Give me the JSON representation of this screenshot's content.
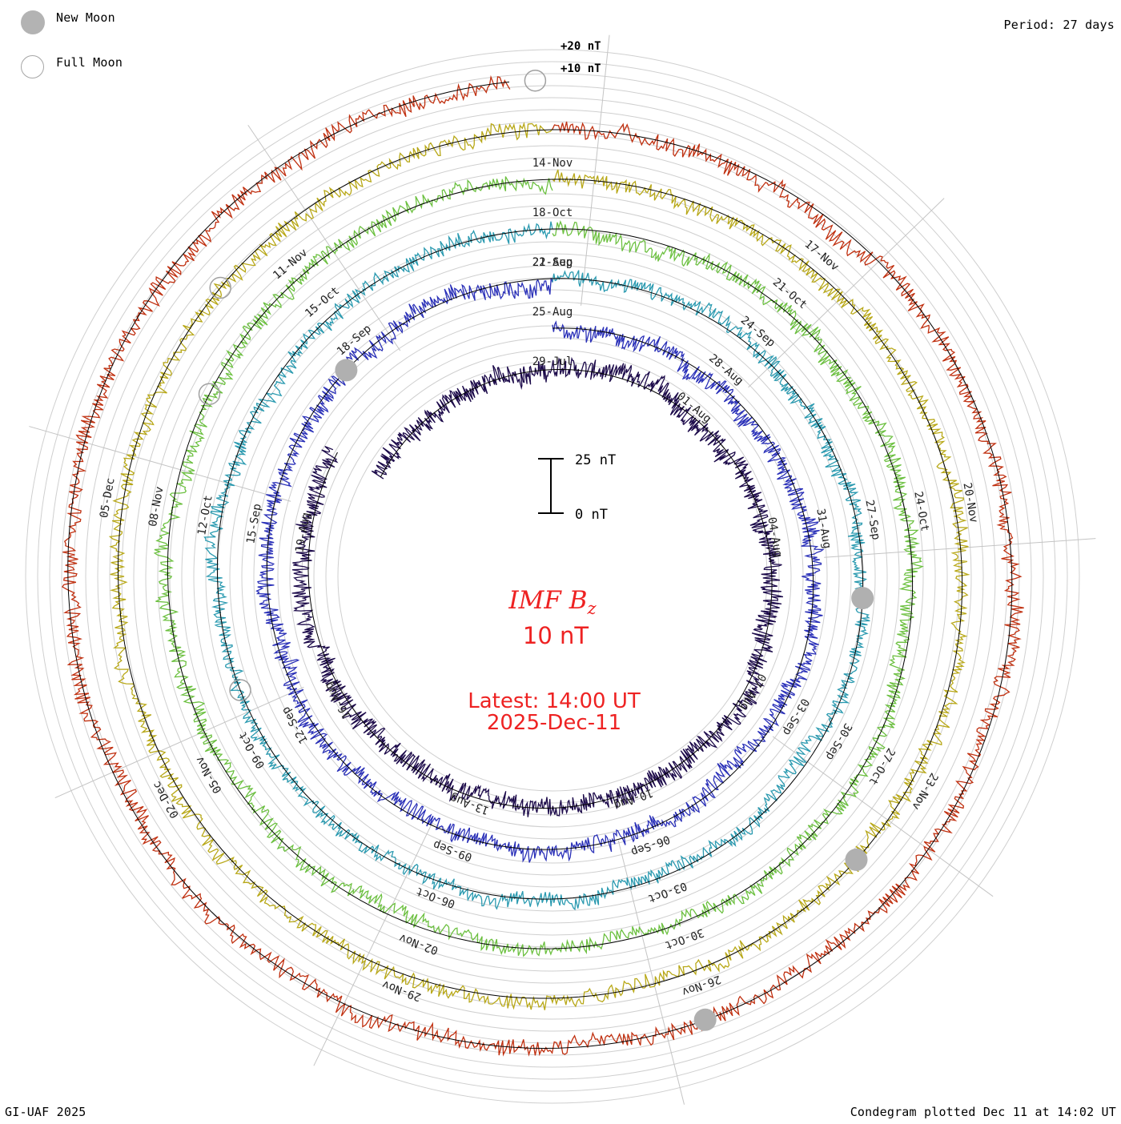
{
  "legend": {
    "new_moon": "New Moon",
    "full_moon": "Full Moon"
  },
  "period": "Period: 27 days",
  "footer": {
    "credit": "GI-UAF 2025",
    "plotted": "Condegram plotted Dec 11 at 14:02 UT"
  },
  "center": {
    "title_main": "IMF B",
    "title_sub": "z",
    "scale_label": "10 nT",
    "latest": "Latest: 14:00 UT",
    "date": "2025-Dec-11",
    "bar_top_label": "25 nT",
    "bar_bottom_label": "0 nT"
  },
  "ring_labels": {
    "plus20": "+20 nT",
    "plus10": "+10 nT"
  },
  "colors": {
    "text_red": "#ee2222",
    "grid": "#c8c8c8",
    "moon_fill": "#b0b0b0"
  },
  "chart_data": {
    "type": "line",
    "title": "IMF Bz condegram",
    "period_days": 27,
    "scale_nT_per_ring_unit": 10,
    "rings": [
      {
        "index": 0,
        "color": "#1c0a4a",
        "noise": 4.0,
        "date_labels": [
          "29-Jul",
          "01-Aug",
          "04-Aug",
          "07-Aug",
          "10-Aug",
          "13-Aug",
          "16-Aug",
          "19-Aug"
        ]
      },
      {
        "index": 1,
        "color": "#2a30b8",
        "noise": 3.5,
        "date_labels": [
          "25-Aug",
          "28-Aug",
          "31-Aug",
          "03-Sep",
          "06-Sep",
          "09-Sep",
          "12-Sep",
          "15-Sep",
          "18-Sep",
          "22-Aug"
        ]
      },
      {
        "index": 2,
        "color": "#2a9ab0",
        "noise": 3.0,
        "date_labels": [
          "21-Sep",
          "24-Sep",
          "27-Sep",
          "30-Sep",
          "03-Oct",
          "06-Oct",
          "09-Oct",
          "12-Oct",
          "15-Oct"
        ]
      },
      {
        "index": 3,
        "color": "#6cc040",
        "noise": 3.2,
        "date_labels": [
          "18-Oct",
          "21-Oct",
          "24-Oct",
          "27-Oct",
          "30-Oct",
          "02-Nov",
          "05-Nov",
          "08-Nov",
          "11-Nov"
        ]
      },
      {
        "index": 4,
        "color": "#b8a818",
        "noise": 3.0,
        "date_labels": [
          "14-Nov",
          "17-Nov",
          "20-Nov",
          "23-Nov",
          "26-Nov",
          "29-Nov",
          "02-Dec",
          "05-Dec"
        ]
      },
      {
        "index": 5,
        "color": "#c03010",
        "noise": 3.4,
        "date_labels": []
      }
    ],
    "moons": [
      {
        "type": "new",
        "ring": 1,
        "angle_deg": -135
      },
      {
        "type": "new",
        "ring": 2,
        "angle_deg": 4
      },
      {
        "type": "new",
        "ring": 4,
        "angle_deg": 43
      },
      {
        "type": "new",
        "ring": 5,
        "angle_deg": 71
      },
      {
        "type": "full",
        "ring": 2,
        "angle_deg": 160
      },
      {
        "type": "full",
        "ring": 3,
        "angle_deg": -152
      },
      {
        "type": "full",
        "ring": 4,
        "angle_deg": -139
      },
      {
        "type": "full",
        "ring": 5,
        "angle_deg": -92
      }
    ]
  }
}
